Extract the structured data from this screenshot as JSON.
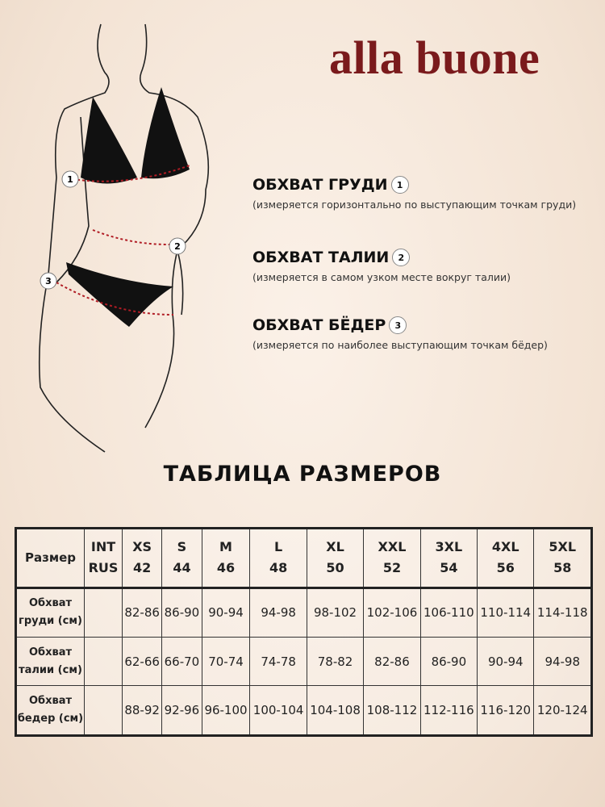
{
  "brand": {
    "logo": "alla buone",
    "color": "#7a1a1c"
  },
  "measurements": [
    {
      "title": "ОБХВАТ ГРУДИ",
      "number": "1",
      "description": "(измеряется горизонтально по выступающим точкам груди)"
    },
    {
      "title": "ОБХВАТ ТАЛИИ",
      "number": "2",
      "description": "(измеряется в самом узком месте вокруг талии)"
    },
    {
      "title": "ОБХВАТ БЁДЕР",
      "number": "3",
      "description": "(измеряется по наиболее выступающим точкам бёдер)"
    }
  ],
  "table_title": "ТАБЛИЦА РАЗМЕРОВ",
  "table": {
    "corner": "Размер",
    "system_labels": [
      "INT",
      "RUS"
    ],
    "sizes": [
      {
        "int": "XS",
        "rus": "42"
      },
      {
        "int": "S",
        "rus": "44"
      },
      {
        "int": "M",
        "rus": "46"
      },
      {
        "int": "L",
        "rus": "48"
      },
      {
        "int": "XL",
        "rus": "50"
      },
      {
        "int": "XXL",
        "rus": "52"
      },
      {
        "int": "3XL",
        "rus": "54"
      },
      {
        "int": "4XL",
        "rus": "56"
      },
      {
        "int": "5XL",
        "rus": "58"
      }
    ],
    "rows": [
      {
        "label": [
          "Обхват",
          "груди (см)"
        ],
        "values": [
          "82-86",
          "86-90",
          "90-94",
          "94-98",
          "98-102",
          "102-106",
          "106-110",
          "110-114",
          "114-118"
        ]
      },
      {
        "label": [
          "Обхват",
          "талии (см)"
        ],
        "values": [
          "62-66",
          "66-70",
          "70-74",
          "74-78",
          "78-82",
          "82-86",
          "86-90",
          "90-94",
          "94-98"
        ]
      },
      {
        "label": [
          "Обхват",
          "бедер (см)"
        ],
        "values": [
          "88-92",
          "92-96",
          "96-100",
          "100-104",
          "104-108",
          "108-112",
          "112-116",
          "116-120",
          "120-124"
        ]
      }
    ]
  }
}
